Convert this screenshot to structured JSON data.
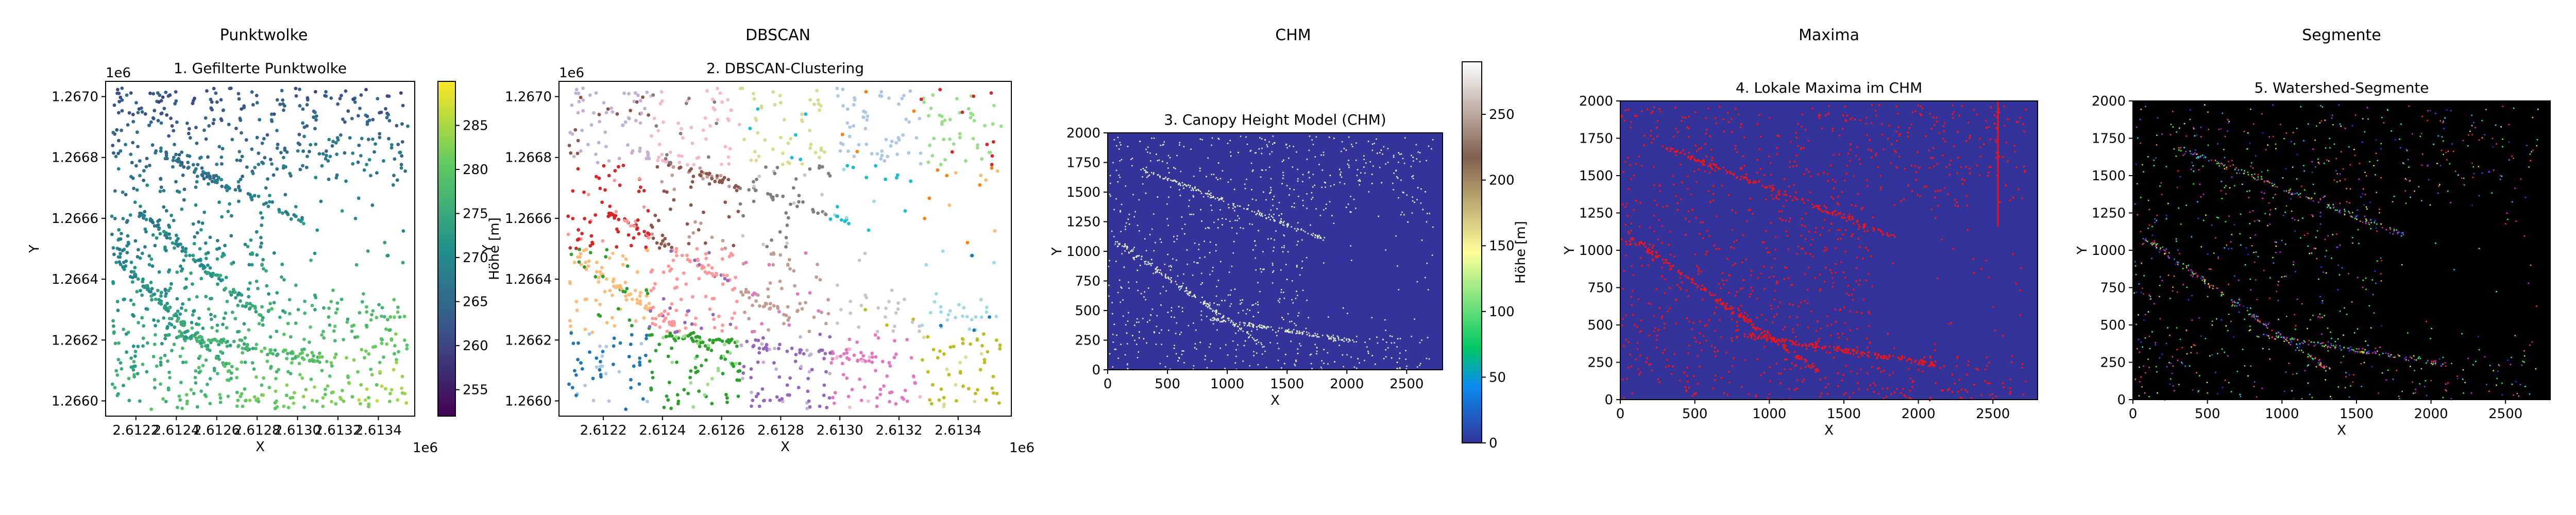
{
  "figure": {
    "panel_headers": [
      "Punktwolke",
      "DBSCAN",
      "CHM",
      "Maxima",
      "Segmente"
    ]
  },
  "chart_data": [
    {
      "type": "scatter",
      "title": "1. Gefilterte Punktwolke",
      "xlabel": "X",
      "ylabel": "Y",
      "x_offset_label": "1e6",
      "y_offset_label": "1e6",
      "xlim": [
        2.61205,
        2.61358
      ],
      "ylim": [
        1.26595,
        1.26705
      ],
      "xticks": [
        2.6122,
        2.6124,
        2.6126,
        2.6128,
        2.613,
        2.6132,
        2.6134
      ],
      "xtick_labels": [
        "2.6122",
        "2.6124",
        "2.6126",
        "2.6128",
        "2.6130",
        "2.6132",
        "2.6134"
      ],
      "yticks": [
        1.266,
        1.2662,
        1.2664,
        1.2666,
        1.2668,
        1.267
      ],
      "ytick_labels": [
        "1.2660",
        "1.2662",
        "1.2664",
        "1.2666",
        "1.2668",
        "1.2670"
      ],
      "colormap": "viridis",
      "colorbar": {
        "label": "Höhe [m]",
        "range": [
          252,
          290
        ],
        "ticks": [
          255,
          260,
          265,
          270,
          275,
          280,
          285
        ],
        "tick_labels": [
          "255",
          "260",
          "265",
          "270",
          "275",
          "280",
          "285"
        ]
      },
      "series": [
        {
          "kind": "diagonal-band",
          "x": [
            2.6121,
            2.6128
          ],
          "y": [
            1.2665,
            1.2661
          ]
        },
        {
          "kind": "diagonal-band",
          "x": [
            2.6123,
            2.6131
          ],
          "y": [
            1.2669,
            1.2666
          ]
        },
        {
          "kind": "diagonal-band",
          "x": [
            2.6125,
            2.6132
          ],
          "y": [
            1.2663,
            1.2662
          ]
        }
      ]
    },
    {
      "type": "scatter",
      "title": "2. DBSCAN-Clustering",
      "xlabel": "X",
      "ylabel": "Y",
      "x_offset_label": "1e6",
      "y_offset_label": "1e6",
      "xlim": [
        2.61205,
        2.61358
      ],
      "ylim": [
        1.26595,
        1.26705
      ],
      "xticks": [
        2.6122,
        2.6124,
        2.6126,
        2.6128,
        2.613,
        2.6132,
        2.6134
      ],
      "xtick_labels": [
        "2.6122",
        "2.6124",
        "2.6126",
        "2.6128",
        "2.6130",
        "2.6132",
        "2.6134"
      ],
      "yticks": [
        1.266,
        1.2662,
        1.2664,
        1.2666,
        1.2668,
        1.267
      ],
      "ytick_labels": [
        "1.2660",
        "1.2662",
        "1.2664",
        "1.2666",
        "1.2668",
        "1.2670"
      ],
      "colormap": "tab20"
    },
    {
      "type": "heatmap",
      "title": "3. Canopy Height Model (CHM)",
      "xlabel": "X",
      "ylabel": "Y",
      "xlim": [
        0,
        2800
      ],
      "ylim": [
        0,
        2000
      ],
      "xticks": [
        0,
        500,
        1000,
        1500,
        2000,
        2500
      ],
      "yticks": [
        0,
        250,
        500,
        750,
        1000,
        1250,
        1500,
        1750,
        2000
      ],
      "colormap": "terrain",
      "background_color": "#333399",
      "colorbar": {
        "label": "Höhe [m]",
        "range": [
          0,
          290
        ],
        "ticks": [
          0,
          50,
          100,
          150,
          200,
          250
        ],
        "tick_labels": [
          "0",
          "50",
          "100",
          "150",
          "200",
          "250"
        ]
      }
    },
    {
      "type": "heatmap",
      "title": "4. Lokale Maxima im CHM",
      "xlabel": "X",
      "ylabel": "Y",
      "xlim": [
        0,
        2800
      ],
      "ylim": [
        0,
        2000
      ],
      "xticks": [
        0,
        500,
        1000,
        1500,
        2000,
        2500
      ],
      "yticks": [
        0,
        250,
        500,
        750,
        1000,
        1250,
        1500,
        1750,
        2000
      ],
      "background_color": "#333399",
      "marker_color": "#e8141c"
    },
    {
      "type": "heatmap",
      "title": "5. Watershed-Segmente",
      "xlabel": "X",
      "ylabel": "Y",
      "xlim": [
        0,
        2800
      ],
      "ylim": [
        0,
        2000
      ],
      "xticks": [
        0,
        500,
        1000,
        1500,
        2000,
        2500
      ],
      "yticks": [
        0,
        250,
        500,
        750,
        1000,
        1250,
        1500,
        1750,
        2000
      ],
      "background_color": "#000000",
      "colormap": "random-labels"
    }
  ]
}
